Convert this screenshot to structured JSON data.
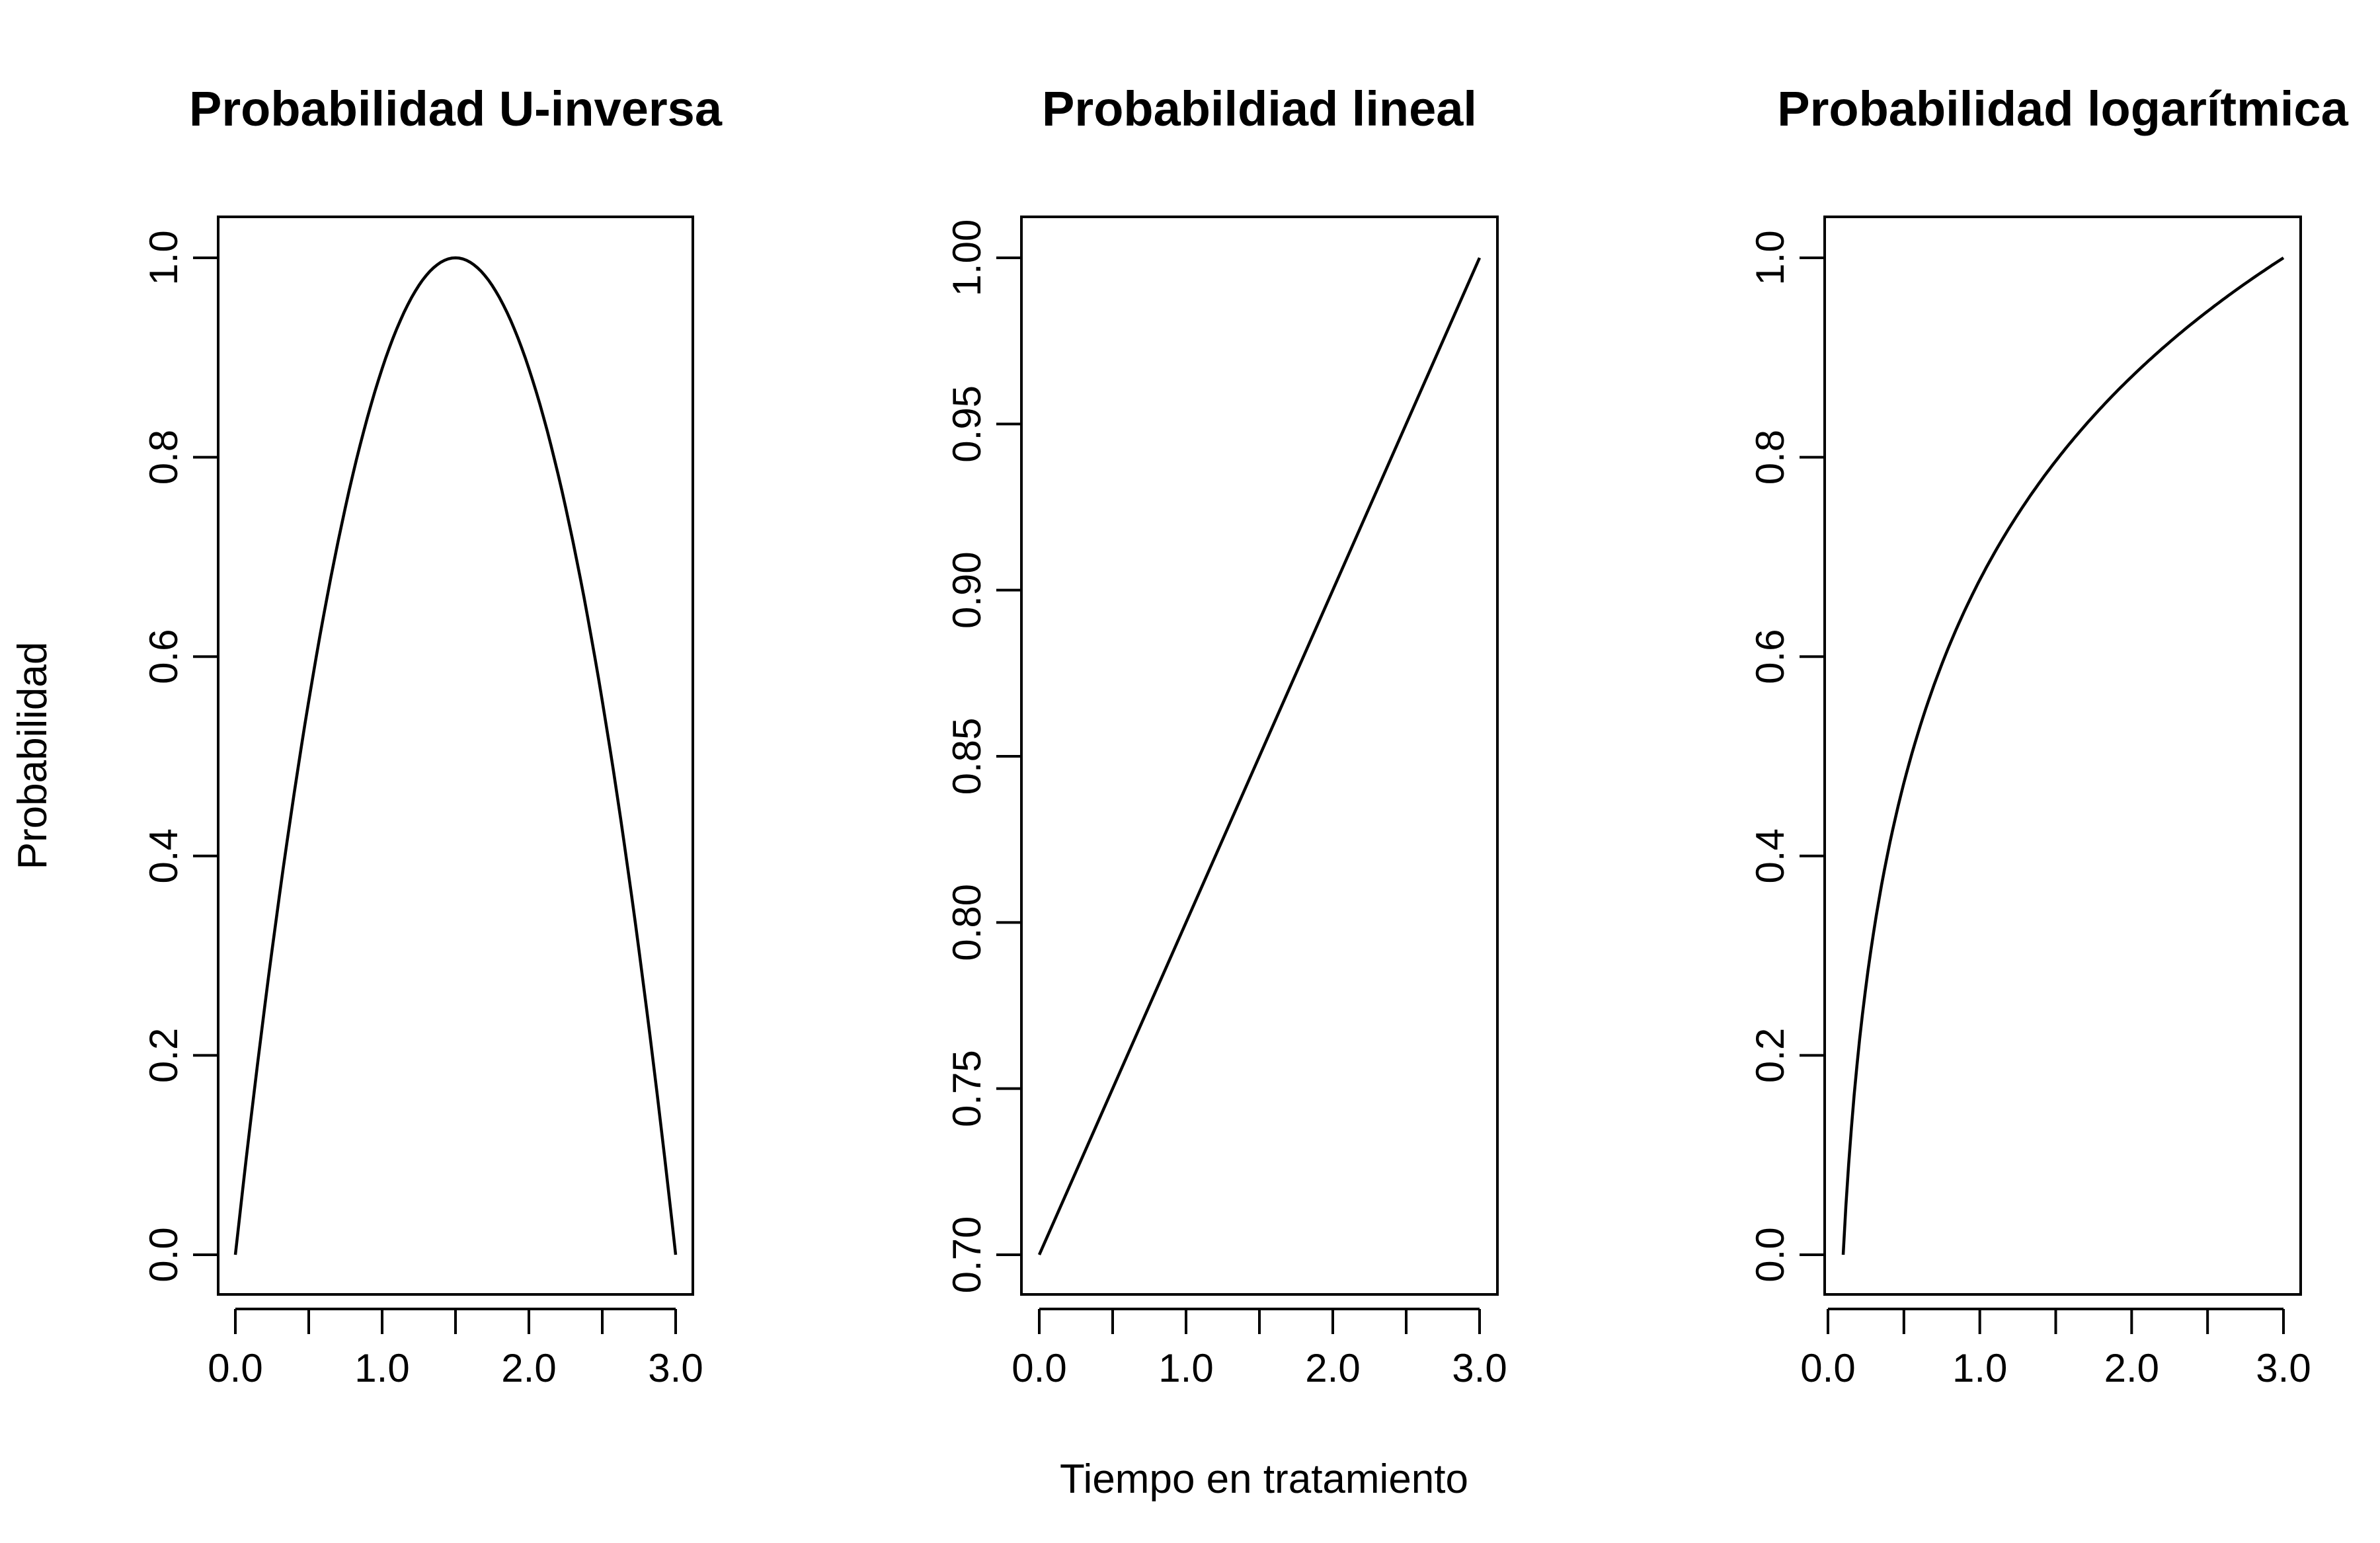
{
  "figure": {
    "ylabel": "Probabilidad",
    "xlabel": "Tiempo en tratamiento"
  },
  "chart_data": [
    {
      "type": "line",
      "title": "Probabilidad U-inversa",
      "xlim": [
        0,
        3
      ],
      "ylim": [
        0,
        1
      ],
      "x_ticks": [
        "0.0",
        "1.0",
        "2.0",
        "3.0"
      ],
      "x_minor_ticks": [
        0.5,
        1.5,
        2.5
      ],
      "y_ticks": [
        "0.0",
        "0.2",
        "0.4",
        "0.6",
        "0.8",
        "1.0"
      ],
      "x": [
        0,
        0.25,
        0.5,
        0.75,
        1.0,
        1.25,
        1.5,
        1.75,
        2.0,
        2.25,
        2.5,
        2.75,
        3.0
      ],
      "y": [
        0.0,
        0.31,
        0.56,
        0.75,
        0.89,
        0.97,
        1.0,
        0.97,
        0.89,
        0.75,
        0.56,
        0.31,
        0.0
      ]
    },
    {
      "type": "line",
      "title": "Probabildiad lineal",
      "xlim": [
        0,
        3
      ],
      "ylim": [
        0.7,
        1.0
      ],
      "x_ticks": [
        "0.0",
        "1.0",
        "2.0",
        "3.0"
      ],
      "x_minor_ticks": [
        0.5,
        1.5,
        2.5
      ],
      "y_ticks": [
        "0.70",
        "0.75",
        "0.80",
        "0.85",
        "0.90",
        "0.95",
        "1.00"
      ],
      "x": [
        0,
        3
      ],
      "y": [
        0.7,
        1.0
      ]
    },
    {
      "type": "line",
      "title": "Probabilidad logarítmica",
      "xlim": [
        0.1,
        3
      ],
      "ylim": [
        0,
        1
      ],
      "x_ticks": [
        "0.0",
        "1.0",
        "2.0",
        "3.0"
      ],
      "x_minor_ticks": [
        0.5,
        1.5,
        2.5
      ],
      "y_ticks": [
        "0.0",
        "0.2",
        "0.4",
        "0.6",
        "0.8",
        "1.0"
      ],
      "x": [
        0.1,
        0.15,
        0.2,
        0.3,
        0.4,
        0.5,
        0.6,
        0.8,
        1.0,
        1.25,
        1.5,
        1.75,
        2.0,
        2.25,
        2.5,
        2.75,
        3.0
      ],
      "y": [
        0.0,
        0.12,
        0.2,
        0.32,
        0.41,
        0.47,
        0.53,
        0.61,
        0.68,
        0.74,
        0.8,
        0.84,
        0.88,
        0.91,
        0.95,
        0.97,
        1.0
      ]
    }
  ]
}
